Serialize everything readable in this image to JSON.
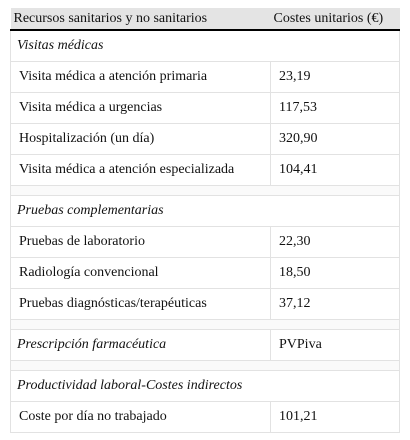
{
  "table": {
    "header": [
      "Recursos sanitarios y no sanitarios",
      "Costes unitarios (€)"
    ],
    "sections": [
      {
        "title": "Visitas médicas",
        "rows": [
          [
            "Visita médica a atención primaria",
            "23,19"
          ],
          [
            "Visita médica a urgencias",
            "117,53"
          ],
          [
            "Hospitalización (un día)",
            "320,90"
          ],
          [
            "Visita médica a atención especializada",
            "104,41"
          ]
        ]
      },
      {
        "title": "Pruebas complementarias",
        "rows": [
          [
            "Pruebas de laboratorio",
            "22,30"
          ],
          [
            "Radiología convencional",
            "18,50"
          ],
          [
            "Pruebas diagnósticas/terapéuticas",
            "37,12"
          ]
        ]
      },
      {
        "title": "Prescripción farmacéutica",
        "value": "PVPiva",
        "rows": []
      },
      {
        "title": "Productividad laboral-Costes indirectos",
        "rows": [
          [
            "Coste por día no trabajado",
            "101,21"
          ]
        ]
      }
    ]
  }
}
